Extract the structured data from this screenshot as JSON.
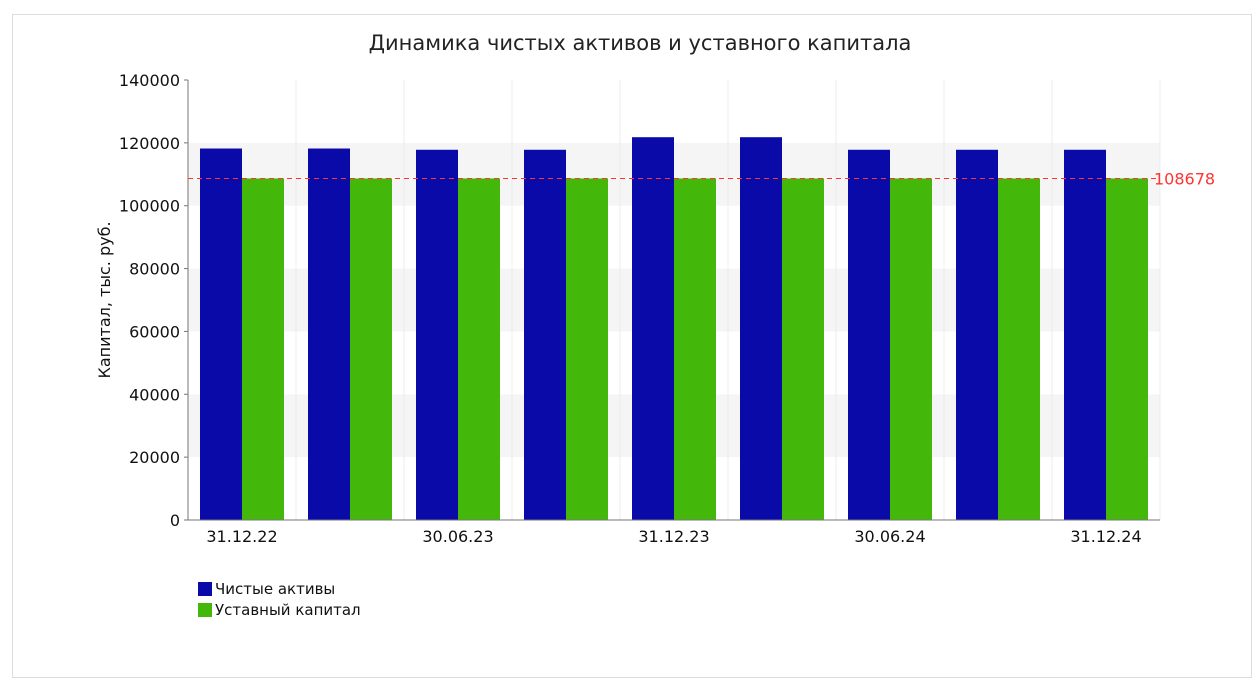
{
  "chart_data": {
    "type": "bar",
    "title": "Динамика чистых активов и уставного капитала",
    "xlabel": "",
    "ylabel": "Капитал, тыс. руб.",
    "ylim": [
      0,
      140000
    ],
    "yticks": [
      "0",
      "20000",
      "40000",
      "60000",
      "80000",
      "100000",
      "120000",
      "140000"
    ],
    "categories": [
      "31.12.22",
      "",
      "30.06.23",
      "",
      "31.12.23",
      "",
      "30.06.24",
      "",
      "31.12.24"
    ],
    "series": [
      {
        "name": "Чистые активы",
        "color": "#0a0aa8",
        "values": [
          118200,
          118200,
          117800,
          117800,
          121800,
          121800,
          117800,
          117800,
          117800
        ]
      },
      {
        "name": "Уставный капитал",
        "color": "#44b80a",
        "values": [
          108678,
          108678,
          108678,
          108678,
          108678,
          108678,
          108678,
          108678,
          108678
        ]
      }
    ],
    "reference_line": {
      "value": 108678,
      "label": "108678",
      "color": "#ff3333"
    },
    "legend_position": "bottom-left",
    "grid": true
  }
}
